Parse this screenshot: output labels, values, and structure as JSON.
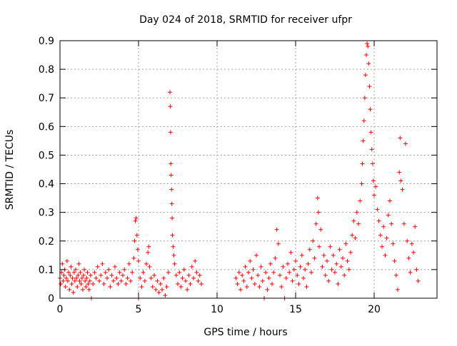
{
  "chart_data": {
    "type": "scatter",
    "title": "Day 024 of 2018, SRMTID for receiver ufpr",
    "xlabel": "GPS time / hours",
    "ylabel": "SRMTID / TECUs",
    "xlim": [
      0,
      24
    ],
    "ylim": [
      0,
      0.9
    ],
    "xticks": [
      0,
      5,
      10,
      15,
      20
    ],
    "yticks": [
      0,
      0.1,
      0.2,
      0.3,
      0.4,
      0.5,
      0.6,
      0.7,
      0.8,
      0.9
    ],
    "xtick_labels": [
      "0",
      "5",
      "10",
      "15",
      "20"
    ],
    "ytick_labels": [
      "0",
      "0.1",
      "0.2",
      "0.3",
      "0.4",
      "0.5",
      "0.6",
      "0.7",
      "0.8",
      "0.9"
    ],
    "grid": true,
    "marker": "plus",
    "color": "#ff0000",
    "series": [
      {
        "name": "SRMTID",
        "points": [
          [
            0.0,
            0.07
          ],
          [
            0.05,
            0.05
          ],
          [
            0.1,
            0.09
          ],
          [
            0.15,
            0.12
          ],
          [
            0.2,
            0.06
          ],
          [
            0.25,
            0.08
          ],
          [
            0.3,
            0.1
          ],
          [
            0.35,
            0.04
          ],
          [
            0.4,
            0.07
          ],
          [
            0.45,
            0.13
          ],
          [
            0.5,
            0.06
          ],
          [
            0.55,
            0.09
          ],
          [
            0.6,
            0.03
          ],
          [
            0.65,
            0.08
          ],
          [
            0.7,
            0.11
          ],
          [
            0.75,
            0.05
          ],
          [
            0.8,
            0.07
          ],
          [
            0.85,
            0.02
          ],
          [
            0.9,
            0.09
          ],
          [
            0.95,
            0.06
          ],
          [
            1.0,
            0.1
          ],
          [
            1.05,
            0.07
          ],
          [
            1.1,
            0.04
          ],
          [
            1.15,
            0.08
          ],
          [
            1.2,
            0.12
          ],
          [
            1.25,
            0.06
          ],
          [
            1.3,
            0.09
          ],
          [
            1.35,
            0.05
          ],
          [
            1.4,
            0.07
          ],
          [
            1.45,
            0.03
          ],
          [
            1.5,
            0.08
          ],
          [
            1.55,
            0.1
          ],
          [
            1.6,
            0.06
          ],
          [
            1.65,
            0.04
          ],
          [
            1.7,
            0.07
          ],
          [
            1.75,
            0.09
          ],
          [
            1.8,
            0.05
          ],
          [
            1.85,
            0.03
          ],
          [
            1.9,
            0.06
          ],
          [
            1.95,
            0.08
          ],
          [
            2.0,
            0.0
          ],
          [
            2.1,
            0.05
          ],
          [
            2.2,
            0.09
          ],
          [
            2.3,
            0.07
          ],
          [
            2.4,
            0.11
          ],
          [
            2.5,
            0.06
          ],
          [
            2.6,
            0.08
          ],
          [
            2.7,
            0.12
          ],
          [
            2.8,
            0.05
          ],
          [
            2.9,
            0.09
          ],
          [
            3.0,
            0.07
          ],
          [
            3.1,
            0.1
          ],
          [
            3.2,
            0.04
          ],
          [
            3.3,
            0.08
          ],
          [
            3.4,
            0.06
          ],
          [
            3.5,
            0.11
          ],
          [
            3.6,
            0.07
          ],
          [
            3.7,
            0.05
          ],
          [
            3.8,
            0.09
          ],
          [
            3.9,
            0.06
          ],
          [
            4.0,
            0.08
          ],
          [
            4.1,
            0.1
          ],
          [
            4.2,
            0.05
          ],
          [
            4.3,
            0.07
          ],
          [
            4.4,
            0.12
          ],
          [
            4.5,
            0.06
          ],
          [
            4.6,
            0.09
          ],
          [
            4.7,
            0.14
          ],
          [
            4.75,
            0.2
          ],
          [
            4.8,
            0.27
          ],
          [
            4.85,
            0.28
          ],
          [
            4.9,
            0.22
          ],
          [
            4.95,
            0.17
          ],
          [
            5.0,
            0.13
          ],
          [
            5.0,
            0.0
          ],
          [
            5.1,
            0.07
          ],
          [
            5.2,
            0.04
          ],
          [
            5.3,
            0.09
          ],
          [
            5.4,
            0.06
          ],
          [
            5.5,
            0.12
          ],
          [
            5.6,
            0.16
          ],
          [
            5.65,
            0.18
          ],
          [
            5.7,
            0.11
          ],
          [
            5.8,
            0.07
          ],
          [
            5.9,
            0.04
          ],
          [
            6.0,
            0.08
          ],
          [
            6.1,
            0.03
          ],
          [
            6.2,
            0.06
          ],
          [
            6.3,
            0.02
          ],
          [
            6.4,
            0.05
          ],
          [
            6.5,
            0.03
          ],
          [
            6.6,
            0.07
          ],
          [
            6.7,
            0.01
          ],
          [
            6.8,
            0.04
          ],
          [
            6.9,
            0.09
          ],
          [
            7.0,
            0.72
          ],
          [
            7.02,
            0.67
          ],
          [
            7.04,
            0.58
          ],
          [
            7.06,
            0.47
          ],
          [
            7.08,
            0.43
          ],
          [
            7.1,
            0.38
          ],
          [
            7.12,
            0.33
          ],
          [
            7.14,
            0.28
          ],
          [
            7.16,
            0.22
          ],
          [
            7.2,
            0.18
          ],
          [
            7.25,
            0.15
          ],
          [
            7.3,
            0.12
          ],
          [
            7.4,
            0.08
          ],
          [
            7.5,
            0.05
          ],
          [
            7.6,
            0.09
          ],
          [
            7.7,
            0.04
          ],
          [
            7.8,
            0.07
          ],
          [
            7.9,
            0.1
          ],
          [
            8.0,
            0.06
          ],
          [
            8.1,
            0.03
          ],
          [
            8.2,
            0.08
          ],
          [
            8.3,
            0.05
          ],
          [
            8.4,
            0.11
          ],
          [
            8.5,
            0.07
          ],
          [
            8.6,
            0.13
          ],
          [
            8.7,
            0.09
          ],
          [
            8.8,
            0.06
          ],
          [
            8.9,
            0.08
          ],
          [
            9.0,
            0.05
          ],
          [
            11.2,
            0.07
          ],
          [
            11.3,
            0.05
          ],
          [
            11.4,
            0.09
          ],
          [
            11.5,
            0.03
          ],
          [
            11.6,
            0.08
          ],
          [
            11.7,
            0.06
          ],
          [
            11.8,
            0.11
          ],
          [
            11.9,
            0.04
          ],
          [
            12.0,
            0.09
          ],
          [
            12.1,
            0.13
          ],
          [
            12.2,
            0.07
          ],
          [
            12.3,
            0.1
          ],
          [
            12.4,
            0.05
          ],
          [
            12.5,
            0.15
          ],
          [
            12.6,
            0.08
          ],
          [
            12.7,
            0.04
          ],
          [
            12.8,
            0.11
          ],
          [
            12.9,
            0.06
          ],
          [
            13.0,
            0.0
          ],
          [
            13.1,
            0.09
          ],
          [
            13.2,
            0.03
          ],
          [
            13.3,
            0.07
          ],
          [
            13.4,
            0.12
          ],
          [
            13.5,
            0.05
          ],
          [
            13.6,
            0.09
          ],
          [
            13.7,
            0.14
          ],
          [
            13.8,
            0.24
          ],
          [
            13.9,
            0.19
          ],
          [
            14.0,
            0.08
          ],
          [
            14.1,
            0.04
          ],
          [
            14.2,
            0.11
          ],
          [
            14.3,
            0.0
          ],
          [
            14.4,
            0.07
          ],
          [
            14.5,
            0.12
          ],
          [
            14.6,
            0.09
          ],
          [
            14.7,
            0.16
          ],
          [
            14.8,
            0.06
          ],
          [
            14.9,
            0.1
          ],
          [
            15.0,
            0.13
          ],
          [
            15.1,
            0.08
          ],
          [
            15.2,
            0.05
          ],
          [
            15.3,
            0.11
          ],
          [
            15.4,
            0.15
          ],
          [
            15.5,
            0.07
          ],
          [
            15.6,
            0.1
          ],
          [
            15.7,
            0.04
          ],
          [
            15.8,
            0.12
          ],
          [
            15.9,
            0.17
          ],
          [
            16.0,
            0.09
          ],
          [
            16.1,
            0.2
          ],
          [
            16.2,
            0.14
          ],
          [
            16.3,
            0.26
          ],
          [
            16.4,
            0.35
          ],
          [
            16.45,
            0.3
          ],
          [
            16.5,
            0.18
          ],
          [
            16.6,
            0.24
          ],
          [
            16.7,
            0.11
          ],
          [
            16.8,
            0.15
          ],
          [
            16.9,
            0.08
          ],
          [
            17.0,
            0.13
          ],
          [
            17.1,
            0.06
          ],
          [
            17.2,
            0.18
          ],
          [
            17.3,
            0.1
          ],
          [
            17.4,
            0.15
          ],
          [
            17.5,
            0.09
          ],
          [
            17.6,
            0.12
          ],
          [
            17.7,
            0.05
          ],
          [
            17.8,
            0.17
          ],
          [
            17.9,
            0.11
          ],
          [
            18.0,
            0.14
          ],
          [
            18.1,
            0.08
          ],
          [
            18.2,
            0.19
          ],
          [
            18.3,
            0.13
          ],
          [
            18.4,
            0.1
          ],
          [
            18.5,
            0.16
          ],
          [
            18.6,
            0.22
          ],
          [
            18.7,
            0.27
          ],
          [
            18.8,
            0.21
          ],
          [
            18.9,
            0.3
          ],
          [
            19.0,
            0.26
          ],
          [
            19.1,
            0.34
          ],
          [
            19.2,
            0.4
          ],
          [
            19.25,
            0.47
          ],
          [
            19.3,
            0.55
          ],
          [
            19.35,
            0.62
          ],
          [
            19.4,
            0.7
          ],
          [
            19.45,
            0.78
          ],
          [
            19.5,
            0.85
          ],
          [
            19.55,
            0.89
          ],
          [
            19.6,
            0.88
          ],
          [
            19.65,
            0.82
          ],
          [
            19.7,
            0.74
          ],
          [
            19.75,
            0.66
          ],
          [
            19.8,
            0.58
          ],
          [
            19.85,
            0.52
          ],
          [
            19.9,
            0.47
          ],
          [
            19.95,
            0.41
          ],
          [
            20.0,
            0.36
          ],
          [
            20.1,
            0.39
          ],
          [
            20.2,
            0.31
          ],
          [
            20.3,
            0.27
          ],
          [
            20.4,
            0.22
          ],
          [
            20.5,
            0.18
          ],
          [
            20.6,
            0.25
          ],
          [
            20.7,
            0.15
          ],
          [
            20.8,
            0.21
          ],
          [
            20.9,
            0.29
          ],
          [
            21.0,
            0.34
          ],
          [
            21.1,
            0.26
          ],
          [
            21.2,
            0.19
          ],
          [
            21.3,
            0.13
          ],
          [
            21.4,
            0.08
          ],
          [
            21.5,
            0.03
          ],
          [
            21.6,
            0.44
          ],
          [
            21.65,
            0.56
          ],
          [
            21.7,
            0.41
          ],
          [
            21.8,
            0.38
          ],
          [
            21.9,
            0.26
          ],
          [
            22.0,
            0.54
          ],
          [
            22.1,
            0.2
          ],
          [
            22.2,
            0.14
          ],
          [
            22.3,
            0.09
          ],
          [
            22.4,
            0.19
          ],
          [
            22.5,
            0.16
          ],
          [
            22.6,
            0.25
          ],
          [
            22.7,
            0.1
          ],
          [
            22.8,
            0.06
          ]
        ]
      }
    ]
  }
}
